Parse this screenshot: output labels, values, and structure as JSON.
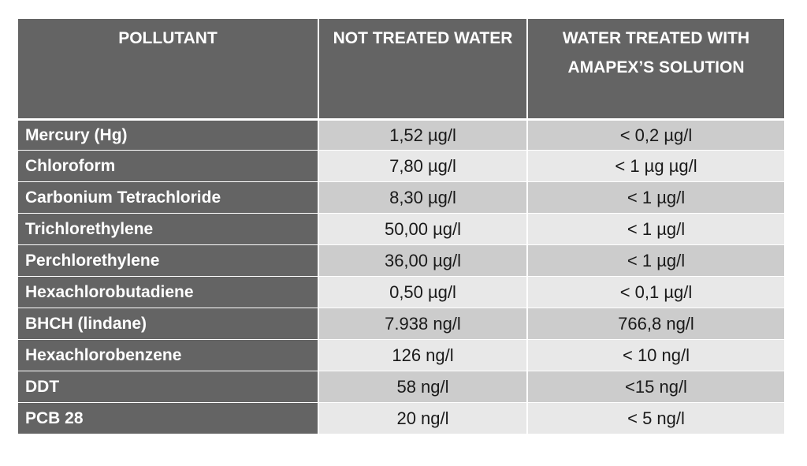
{
  "table": {
    "headers": [
      "POLLUTANT",
      "NOT TREATED WATER",
      "WATER TREATED WITH AMAPEX’S SOLUTION"
    ],
    "rows": [
      {
        "pollutant": "Mercury (Hg)",
        "not_treated": "1,52 µg/l",
        "treated": "< 0,2 µg/l"
      },
      {
        "pollutant": "Chloroform",
        "not_treated": "7,80 µg/l",
        "treated": "< 1 µg µg/l"
      },
      {
        "pollutant": "Carbonium Tetrachloride",
        "not_treated": "8,30 µg/l",
        "treated": "< 1  µg/l"
      },
      {
        "pollutant": "Trichlorethylene",
        "not_treated": "50,00 µg/l",
        "treated": "< 1 µg/l"
      },
      {
        "pollutant": "Perchlorethylene",
        "not_treated": "36,00 µg/l",
        "treated": "< 1 µg/l"
      },
      {
        "pollutant": "Hexachlorobutadiene",
        "not_treated": "0,50 µg/l",
        "treated": "< 0,1 µg/l"
      },
      {
        "pollutant": "BHCH (lindane)",
        "not_treated": "7.938 ng/l",
        "treated": "766,8 ng/l"
      },
      {
        "pollutant": "Hexachlorobenzene",
        "not_treated": "126 ng/l",
        "treated": "< 10 ng/l"
      },
      {
        "pollutant": "DDT",
        "not_treated": "58 ng/l",
        "treated": "<15 ng/l"
      },
      {
        "pollutant": "PCB 28",
        "not_treated": "20 ng/l",
        "treated": "< 5 ng/l"
      }
    ]
  }
}
